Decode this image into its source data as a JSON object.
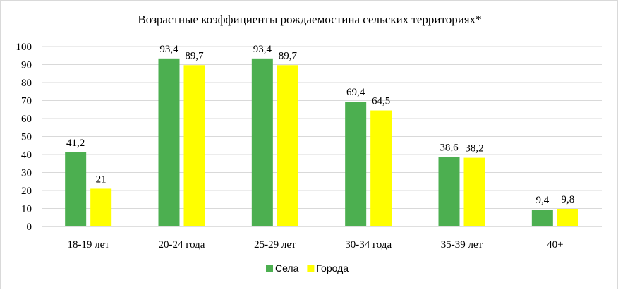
{
  "chart_data": {
    "type": "bar",
    "title": "Возрастные коэффициенты рождаемостина сельских территориях*",
    "categories": [
      "18-19 лет",
      "20-24 года",
      "25-29 лет",
      "30-34 года",
      "35-39 лет",
      "40+"
    ],
    "series": [
      {
        "name": "Села",
        "color": "#4caf50",
        "values": [
          41.2,
          93.4,
          93.4,
          69.4,
          38.6,
          9.4
        ],
        "labels": [
          "41,2",
          "93,4",
          "93,4",
          "69,4",
          "38,6",
          "9,4"
        ]
      },
      {
        "name": "Города",
        "color": "#ffff00",
        "values": [
          21,
          89.7,
          89.7,
          64.5,
          38.2,
          9.8
        ],
        "labels": [
          "21",
          "89,7",
          "89,7",
          "64,5",
          "38,2",
          "9,8"
        ]
      }
    ],
    "ylim": [
      0,
      100
    ],
    "yticks": [
      0,
      10,
      20,
      30,
      40,
      50,
      60,
      70,
      80,
      90,
      100
    ],
    "grid": true,
    "legend": "bottom"
  }
}
